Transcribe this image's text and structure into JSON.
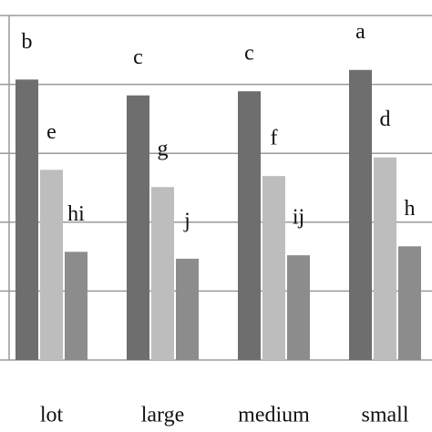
{
  "chart_data": {
    "type": "bar",
    "categories": [
      "lot",
      "large",
      "medium",
      "small"
    ],
    "series": [
      {
        "color": "#6e6e6e",
        "values": [
          4.07,
          3.84,
          3.9,
          4.21
        ],
        "annotations": [
          "b",
          "c",
          "c",
          "a"
        ]
      },
      {
        "color": "#bdbdbd",
        "values": [
          2.76,
          2.51,
          2.67,
          2.94
        ],
        "annotations": [
          "e",
          "g",
          "f",
          "d"
        ]
      },
      {
        "color": "#8c8c8c",
        "values": [
          1.57,
          1.47,
          1.52,
          1.65
        ],
        "annotations": [
          "hi",
          "j",
          "ij",
          "h"
        ]
      }
    ],
    "ylim": [
      0,
      5
    ],
    "yticks": [
      0,
      1,
      2,
      3,
      4,
      5
    ],
    "grid": true,
    "show_ytick_labels": false
  }
}
